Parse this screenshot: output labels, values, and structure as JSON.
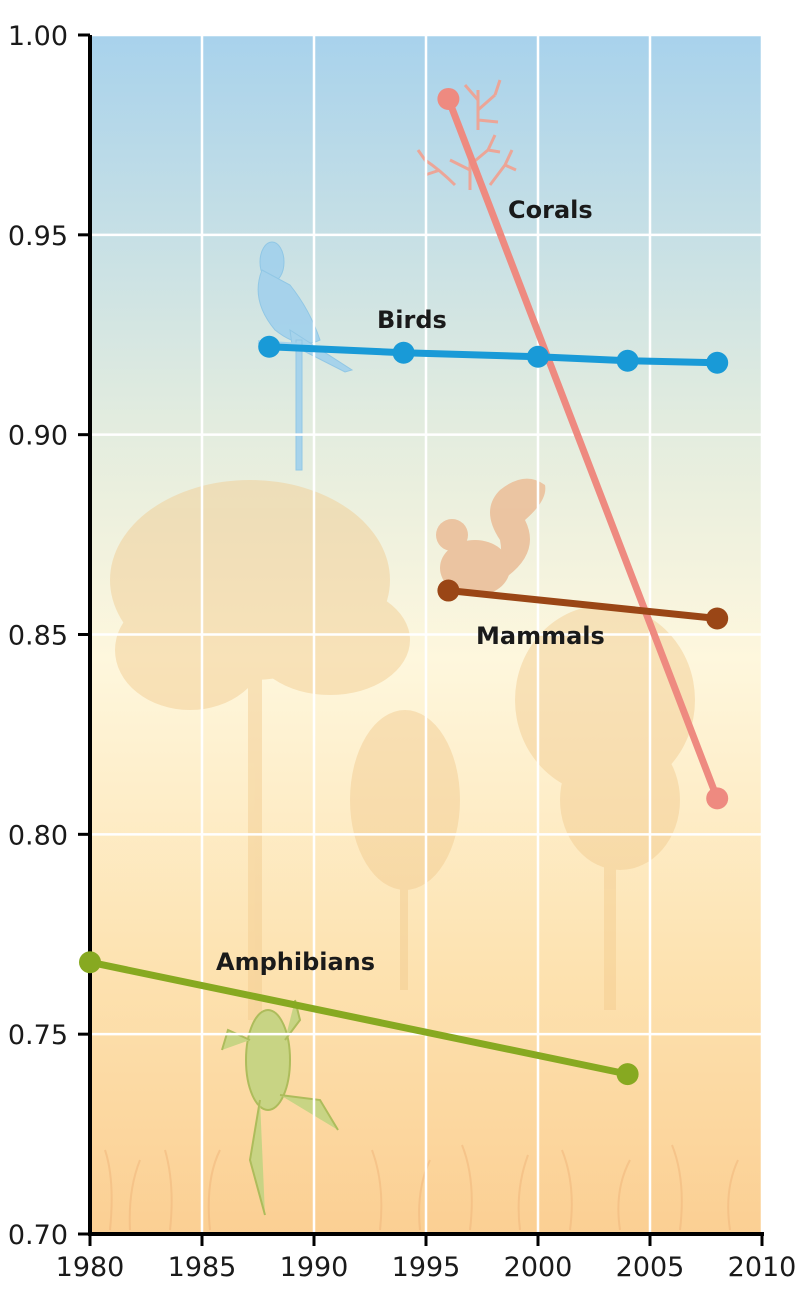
{
  "chart_data": {
    "type": "line",
    "title": "",
    "xlabel": "",
    "ylabel": "",
    "xlim": [
      1980,
      2010
    ],
    "ylim": [
      0.7,
      1.0
    ],
    "grid": true,
    "x_ticks": [
      "1980",
      "1985",
      "1990",
      "1995",
      "2000",
      "2005",
      "2010"
    ],
    "y_ticks": [
      "1.00",
      "0.95",
      "0.90",
      "0.85",
      "0.80",
      "0.75",
      "0.70"
    ],
    "series": [
      {
        "name": "Corals",
        "color": "#ee8a80",
        "x": [
          1996,
          2008
        ],
        "y": [
          0.984,
          0.809
        ]
      },
      {
        "name": "Birds",
        "color": "#199ad7",
        "x": [
          1988,
          1994,
          2000,
          2004,
          2008
        ],
        "y": [
          0.922,
          0.9205,
          0.9195,
          0.9185,
          0.918
        ]
      },
      {
        "name": "Mammals",
        "color": "#9a4616",
        "x": [
          1996,
          2008
        ],
        "y": [
          0.861,
          0.854
        ]
      },
      {
        "name": "Amphibians",
        "color": "#87a921",
        "x": [
          1980,
          2004
        ],
        "y": [
          0.768,
          0.74
        ]
      }
    ]
  },
  "decorations": [
    "parrot-icon",
    "coral-icon",
    "squirrel-icon",
    "frog-icon",
    "tree-silhouette",
    "grass-silhouette"
  ]
}
